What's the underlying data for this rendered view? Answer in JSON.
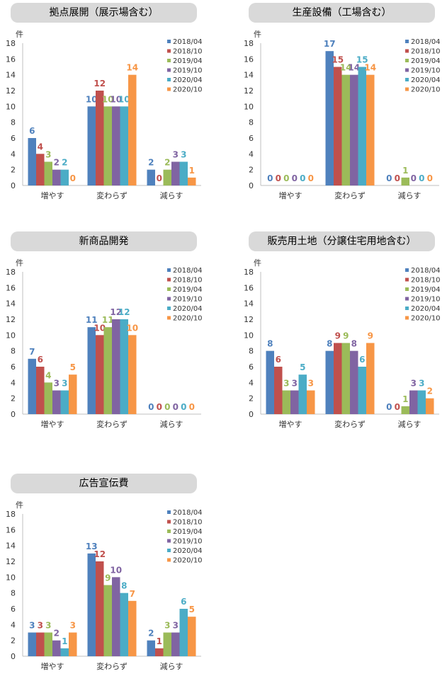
{
  "legend": [
    "2018/04",
    "2018/10",
    "2019/04",
    "2019/10",
    "2020/04",
    "2020/10"
  ],
  "colors": {
    "2018/04": "#4f81bd",
    "2018/10": "#c0504d",
    "2019/04": "#9bbb59",
    "2019/10": "#8064a2",
    "2020/04": "#4bacc6",
    "2020/10": "#f79646"
  },
  "chart_data": [
    {
      "type": "bar",
      "title": "拠点展開（展示場含む）",
      "ylabel": "件",
      "ylim": [
        0,
        18
      ],
      "yticks": [
        0,
        2,
        4,
        6,
        8,
        10,
        12,
        14,
        16,
        18
      ],
      "categories": [
        "増やす",
        "変わらず",
        "減らす"
      ],
      "legend_position": "top-right",
      "series": [
        {
          "name": "2018/04",
          "values": [
            6,
            10,
            2
          ]
        },
        {
          "name": "2018/10",
          "values": [
            4,
            12,
            0
          ]
        },
        {
          "name": "2019/04",
          "values": [
            3,
            10,
            2
          ]
        },
        {
          "name": "2019/10",
          "values": [
            2,
            10,
            3
          ]
        },
        {
          "name": "2020/04",
          "values": [
            2,
            10,
            3
          ]
        },
        {
          "name": "2020/10",
          "values": [
            0,
            14,
            1
          ]
        }
      ]
    },
    {
      "type": "bar",
      "title": "生産設備（工場含む）",
      "ylabel": "件",
      "ylim": [
        0,
        18
      ],
      "yticks": [
        0,
        2,
        4,
        6,
        8,
        10,
        12,
        14,
        16,
        18
      ],
      "categories": [
        "増やす",
        "変わらず",
        "減らす"
      ],
      "legend_position": "top-right",
      "series": [
        {
          "name": "2018/04",
          "values": [
            0,
            17,
            0
          ]
        },
        {
          "name": "2018/10",
          "values": [
            0,
            15,
            0
          ]
        },
        {
          "name": "2019/04",
          "values": [
            0,
            14,
            1
          ]
        },
        {
          "name": "2019/10",
          "values": [
            0,
            14,
            0
          ]
        },
        {
          "name": "2020/04",
          "values": [
            0,
            15,
            0
          ]
        },
        {
          "name": "2020/10",
          "values": [
            0,
            14,
            0
          ]
        }
      ]
    },
    {
      "type": "bar",
      "title": "新商品開発",
      "ylabel": "件",
      "ylim": [
        0,
        18
      ],
      "yticks": [
        0,
        2,
        4,
        6,
        8,
        10,
        12,
        14,
        16,
        18
      ],
      "categories": [
        "増やす",
        "変わらず",
        "減らす"
      ],
      "legend_position": "top-right",
      "series": [
        {
          "name": "2018/04",
          "values": [
            7,
            11,
            0
          ]
        },
        {
          "name": "2018/10",
          "values": [
            6,
            10,
            0
          ]
        },
        {
          "name": "2019/04",
          "values": [
            4,
            11,
            0
          ]
        },
        {
          "name": "2019/10",
          "values": [
            3,
            12,
            0
          ]
        },
        {
          "name": "2020/04",
          "values": [
            3,
            12,
            0
          ]
        },
        {
          "name": "2020/10",
          "values": [
            5,
            10,
            0
          ]
        }
      ]
    },
    {
      "type": "bar",
      "title": "販売用土地（分譲住宅用地含む）",
      "ylabel": "件",
      "ylim": [
        0,
        18
      ],
      "yticks": [
        0,
        2,
        4,
        6,
        8,
        10,
        12,
        14,
        16,
        18
      ],
      "categories": [
        "増やす",
        "変わらず",
        "減らす"
      ],
      "legend_position": "top-right",
      "series": [
        {
          "name": "2018/04",
          "values": [
            8,
            8,
            0
          ]
        },
        {
          "name": "2018/10",
          "values": [
            6,
            9,
            0
          ]
        },
        {
          "name": "2019/04",
          "values": [
            3,
            9,
            1
          ]
        },
        {
          "name": "2019/10",
          "values": [
            3,
            8,
            3
          ]
        },
        {
          "name": "2020/04",
          "values": [
            5,
            6,
            3
          ]
        },
        {
          "name": "2020/10",
          "values": [
            3,
            9,
            2
          ]
        }
      ]
    },
    {
      "type": "bar",
      "title": "広告宣伝費",
      "ylabel": "件",
      "ylim": [
        0,
        18
      ],
      "yticks": [
        0,
        2,
        4,
        6,
        8,
        10,
        12,
        14,
        16,
        18
      ],
      "categories": [
        "増やす",
        "変わらず",
        "減らす"
      ],
      "legend_position": "top-right",
      "series": [
        {
          "name": "2018/04",
          "values": [
            3,
            13,
            2
          ]
        },
        {
          "name": "2018/10",
          "values": [
            3,
            12,
            1
          ]
        },
        {
          "name": "2019/04",
          "values": [
            3,
            9,
            3
          ]
        },
        {
          "name": "2019/10",
          "values": [
            2,
            10,
            3
          ]
        },
        {
          "name": "2020/04",
          "values": [
            1,
            8,
            6
          ]
        },
        {
          "name": "2020/10",
          "values": [
            3,
            7,
            5
          ]
        }
      ]
    }
  ]
}
